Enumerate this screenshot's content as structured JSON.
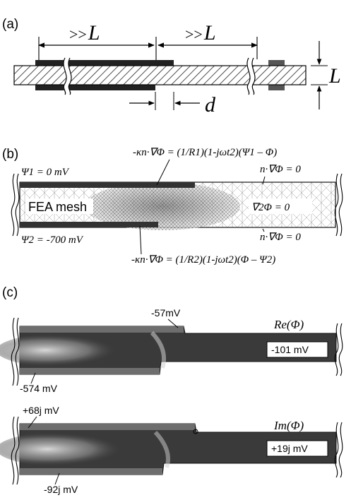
{
  "panel_a": {
    "label": "(a)",
    "dim_left_prefix": ">>",
    "dim_left_var": "L",
    "dim_right_prefix": ">>",
    "dim_right_var": "L",
    "thickness_var": "L",
    "gap_var": "d"
  },
  "panel_b": {
    "label": "(b)",
    "top_bc": "-κn·∇Φ = (1/R1)(1-jωt2)(Ψ1 – Φ)",
    "bottom_bc": "-κn·∇Φ = (1/R2)(1-jωt2)(Φ – Ψ2)",
    "psi1": "Ψ1 = 0 mV",
    "psi2": "Ψ2 = -700 mV",
    "mesh_label": "FEA mesh",
    "neumann_top": "n·∇Φ = 0",
    "neumann_bottom": "n·∇Φ = 0",
    "laplace": "∇2Φ = 0"
  },
  "panel_c": {
    "label": "(c)",
    "re_title": "Re(Φ)",
    "im_title": "Im(Φ)",
    "re_top_value": "-57mV",
    "re_bottom_value": "-574 mV",
    "re_right_value": "-101 mV",
    "im_top_value": "+68j mV",
    "im_bottom_value": "-92j mV",
    "im_right_value": "+19j mV"
  }
}
